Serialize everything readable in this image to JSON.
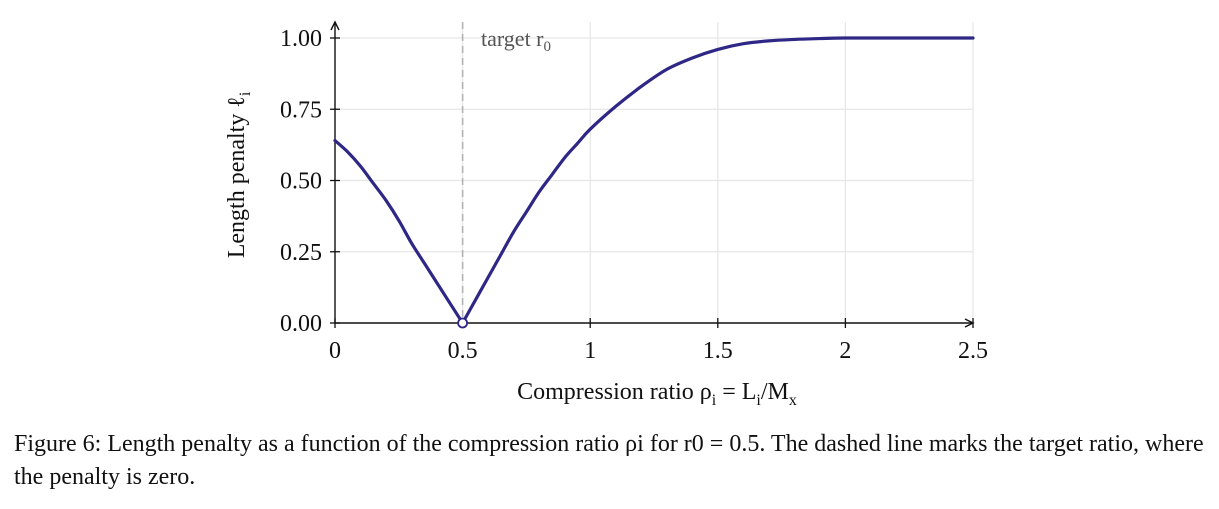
{
  "chart_data": {
    "type": "line",
    "xlabel": "Compression ratio ρ",
    "xlabel_sub": "i",
    "xlabel_eq": " = L",
    "xlabel_sub2": "i",
    "xlabel_tail": "/M",
    "xlabel_sub3": "x",
    "ylabel": "Length penalty ℓ",
    "ylabel_sub": "i",
    "xlim": [
      0,
      2.5
    ],
    "ylim": [
      0,
      1.05
    ],
    "xticks": [
      "0",
      "0.5",
      "1",
      "1.5",
      "2",
      "2.5"
    ],
    "xtick_values": [
      0,
      0.5,
      1,
      1.5,
      2,
      2.5
    ],
    "yticks": [
      "0.00",
      "0.25",
      "0.50",
      "0.75",
      "1.00"
    ],
    "ytick_values": [
      0,
      0.25,
      0.5,
      0.75,
      1.0
    ],
    "grid": true,
    "series": [
      {
        "color": "#2e2785",
        "x": [
          0,
          0.05,
          0.1,
          0.15,
          0.2,
          0.25,
          0.3,
          0.35,
          0.4,
          0.45,
          0.5,
          0.55,
          0.6,
          0.65,
          0.7,
          0.75,
          0.8,
          0.85,
          0.9,
          0.95,
          1.0,
          1.1,
          1.2,
          1.3,
          1.4,
          1.5,
          1.6,
          1.7,
          1.8,
          1.9,
          2.0,
          2.2,
          2.5
        ],
        "y": [
          0.64,
          0.6,
          0.55,
          0.49,
          0.43,
          0.36,
          0.28,
          0.21,
          0.14,
          0.07,
          0.0,
          0.08,
          0.16,
          0.24,
          0.32,
          0.39,
          0.46,
          0.52,
          0.58,
          0.63,
          0.68,
          0.76,
          0.83,
          0.89,
          0.93,
          0.96,
          0.98,
          0.99,
          0.995,
          0.998,
          1.0,
          1.0,
          1.0
        ]
      }
    ],
    "target": {
      "x": 0.5,
      "label": "target r",
      "label_sub": "0",
      "line_style": "dashed",
      "line_color": "#b3b3b3",
      "marker": "open-circle"
    }
  },
  "caption": {
    "text": "Figure 6: Length penalty as a function of the compression ratio ρi for r0 = 0.5. The dashed line marks the target ratio, where the penalty is zero."
  }
}
